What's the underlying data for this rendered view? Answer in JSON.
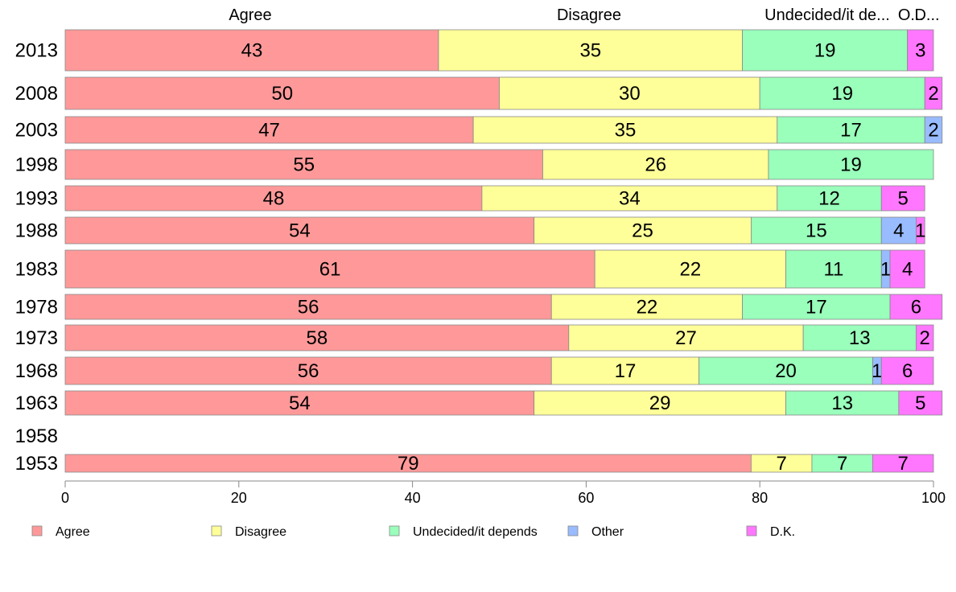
{
  "chart_data": {
    "type": "bar",
    "orientation": "horizontal",
    "stacked": true,
    "categories": [
      "2013",
      "2008",
      "2003",
      "1998",
      "1993",
      "1988",
      "1983",
      "1978",
      "1973",
      "1968",
      "1963",
      "1958",
      "1953"
    ],
    "series": [
      {
        "name": "Agree",
        "color": "#FF9999",
        "values": [
          43,
          50,
          47,
          55,
          48,
          54,
          61,
          56,
          58,
          56,
          54,
          null,
          79
        ]
      },
      {
        "name": "Disagree",
        "color": "#FFFF99",
        "values": [
          35,
          30,
          35,
          26,
          34,
          25,
          22,
          22,
          27,
          17,
          29,
          null,
          7
        ]
      },
      {
        "name": "Undecided/it depends",
        "color": "#99FFBB",
        "values": [
          19,
          19,
          17,
          19,
          12,
          15,
          11,
          17,
          13,
          20,
          13,
          null,
          7
        ]
      },
      {
        "name": "Other",
        "color": "#99BBFF",
        "values": [
          0,
          0,
          2,
          0,
          0,
          4,
          1,
          0,
          0,
          1,
          0,
          null,
          0
        ]
      },
      {
        "name": "D.K.",
        "color": "#FF77FF",
        "values": [
          3,
          2,
          0,
          0,
          5,
          1,
          4,
          6,
          2,
          6,
          5,
          null,
          7
        ]
      }
    ],
    "top_labels": [
      "Agree",
      "Disagree",
      "Undecided/it de...",
      "O...",
      "D..."
    ],
    "xlim": [
      0,
      100
    ],
    "xticks": [
      "0",
      "20",
      "40",
      "60",
      "80",
      "100"
    ],
    "legend_position": "bottom",
    "grid": false
  }
}
